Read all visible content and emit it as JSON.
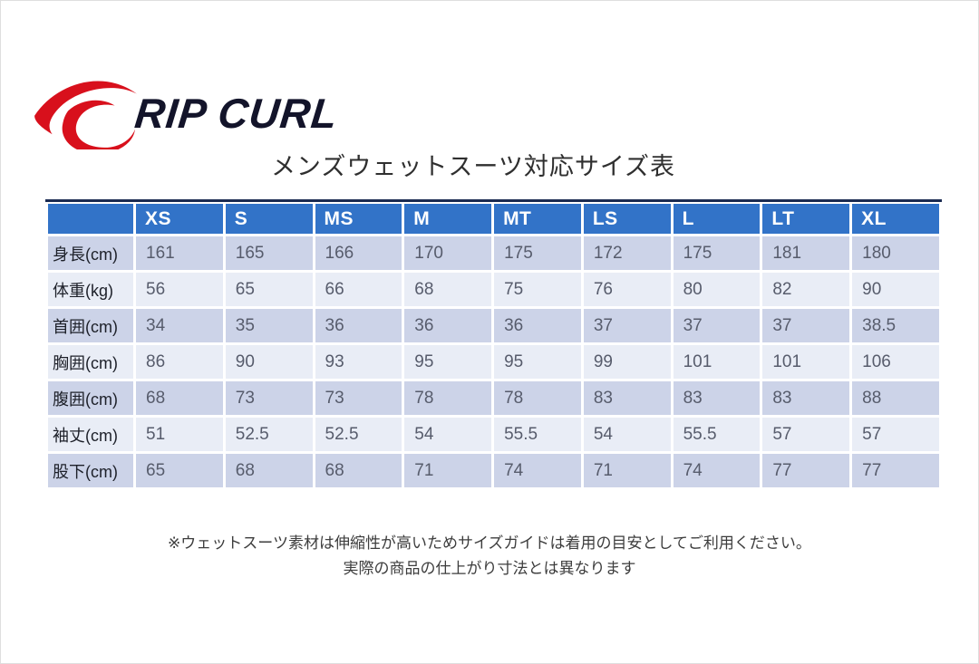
{
  "page": {
    "brand": "RIP CURL",
    "title": "メンズウェットスーツ対応サイズ表",
    "note_line1": "※ウェットスーツ素材は伸縮性が高いためサイズガイドは着用の目安としてご利用ください。",
    "note_line2": "実際の商品の仕上がり寸法とは異なります"
  },
  "colors": {
    "header_blue": "#3273c8",
    "header_top_line": "#1b2b52",
    "row_dark": "#ccd3e8",
    "row_light": "#e9edf6",
    "logo_red": "#d8101c",
    "logo_text": "#13142a",
    "data_text": "#575c6c"
  },
  "chart_data": {
    "type": "table",
    "title": "メンズウェットスーツ対応サイズ表",
    "columns": [
      "",
      "XS",
      "S",
      "MS",
      "M",
      "MT",
      "LS",
      "L",
      "LT",
      "XL"
    ],
    "rows": [
      {
        "label": "身長(cm)",
        "values": [
          161,
          165,
          166,
          170,
          175,
          172,
          175,
          181,
          180
        ]
      },
      {
        "label": "体重(kg)",
        "values": [
          56,
          65,
          66,
          68,
          75,
          76,
          80,
          82,
          90
        ]
      },
      {
        "label": "首囲(cm)",
        "values": [
          34,
          35,
          36,
          36,
          36,
          37,
          37,
          37,
          38.5
        ]
      },
      {
        "label": "胸囲(cm)",
        "values": [
          86,
          90,
          93,
          95,
          95,
          99,
          101,
          101,
          106
        ]
      },
      {
        "label": "腹囲(cm)",
        "values": [
          68,
          73,
          73,
          78,
          78,
          83,
          83,
          83,
          88
        ]
      },
      {
        "label": "袖丈(cm)",
        "values": [
          51,
          52.5,
          52.5,
          54,
          55.5,
          54,
          55.5,
          57,
          57
        ]
      },
      {
        "label": "股下(cm)",
        "values": [
          65,
          68,
          68,
          71,
          74,
          71,
          74,
          77,
          77
        ]
      }
    ]
  }
}
